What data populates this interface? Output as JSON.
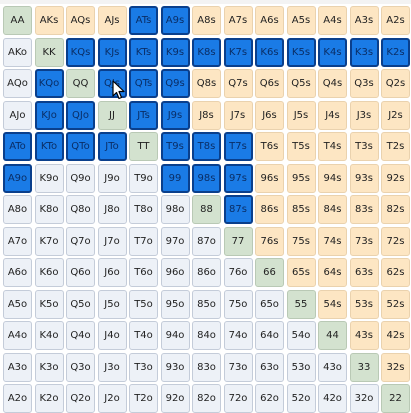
{
  "hands": [
    [
      "AA",
      "AKs",
      "AQs",
      "AJs",
      "ATs",
      "A9s",
      "A8s",
      "A7s",
      "A6s",
      "A5s",
      "A4s",
      "A3s",
      "A2s"
    ],
    [
      "AKo",
      "KK",
      "KQs",
      "KJs",
      "KTs",
      "K9s",
      "K8s",
      "K7s",
      "K6s",
      "K5s",
      "K4s",
      "K3s",
      "K2s"
    ],
    [
      "AQo",
      "KQo",
      "QQ",
      "QJs",
      "QTs",
      "Q9s",
      "Q8s",
      "Q7s",
      "Q6s",
      "Q5s",
      "Q4s",
      "Q3s",
      "Q2s"
    ],
    [
      "AJo",
      "KJo",
      "QJo",
      "JJ",
      "JTs",
      "J9s",
      "J8s",
      "J7s",
      "J6s",
      "J5s",
      "J4s",
      "J3s",
      "J2s"
    ],
    [
      "ATo",
      "KTo",
      "QTo",
      "JTo",
      "TT",
      "T9s",
      "T8s",
      "T7s",
      "T6s",
      "T5s",
      "T4s",
      "T3s",
      "T2s"
    ],
    [
      "A9o",
      "K9o",
      "Q9o",
      "J9o",
      "T9o",
      "99",
      "98s",
      "97s",
      "96s",
      "95s",
      "94s",
      "93s",
      "92s"
    ],
    [
      "A8o",
      "K8o",
      "Q8o",
      "J8o",
      "T8o",
      "98o",
      "88",
      "87s",
      "86s",
      "85s",
      "84s",
      "83s",
      "82s"
    ],
    [
      "A7o",
      "K7o",
      "Q7o",
      "J7o",
      "T7o",
      "97o",
      "87o",
      "77",
      "76s",
      "75s",
      "74s",
      "73s",
      "72s"
    ],
    [
      "A6o",
      "K6o",
      "Q6o",
      "J6o",
      "T6o",
      "96o",
      "86o",
      "76o",
      "66",
      "65s",
      "64s",
      "63s",
      "62s"
    ],
    [
      "A5o",
      "K5o",
      "Q5o",
      "J5o",
      "T5o",
      "95o",
      "85o",
      "75o",
      "65o",
      "55",
      "54s",
      "53s",
      "52s"
    ],
    [
      "A4o",
      "K4o",
      "Q4o",
      "J4o",
      "T4o",
      "94o",
      "84o",
      "74o",
      "64o",
      "54o",
      "44",
      "43s",
      "42s"
    ],
    [
      "A3o",
      "K3o",
      "Q3o",
      "J3o",
      "T3o",
      "93o",
      "83o",
      "73o",
      "63o",
      "53o",
      "43o",
      "33",
      "32s"
    ],
    [
      "A2o",
      "K2o",
      "Q2o",
      "J2o",
      "T2o",
      "92o",
      "82o",
      "72o",
      "62o",
      "52o",
      "42o",
      "32o",
      "22"
    ]
  ],
  "selected": [
    "ATs",
    "A9s",
    "KQs",
    "KJs",
    "KTs",
    "K9s",
    "K8s",
    "K7s",
    "K6s",
    "K5s",
    "K4s",
    "K3s",
    "K2s",
    "KQo",
    "QJs",
    "QTs",
    "Q9s",
    "KJo",
    "QJo",
    "JTs",
    "J9s",
    "ATo",
    "KTo",
    "QTo",
    "JTo",
    "T9s",
    "T8s",
    "T7s",
    "A9o",
    "99",
    "98s",
    "97s",
    "87s"
  ],
  "colors": {
    "selected": "#1a7be6",
    "pair": "#d3e2cf",
    "suited": "#fde6c3",
    "offsuit": "#edf1f7"
  },
  "cursor_icon": "mouse-pointer-icon"
}
